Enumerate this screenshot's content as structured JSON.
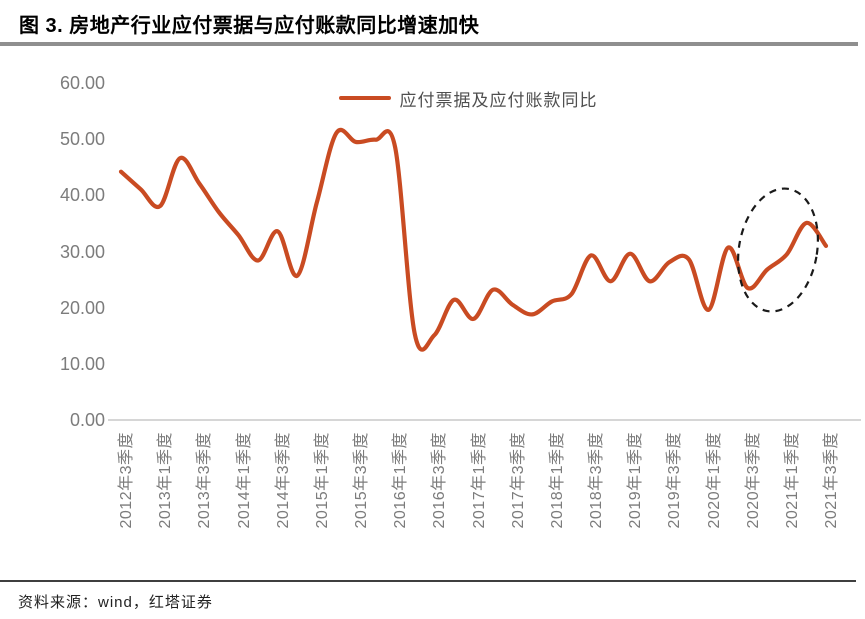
{
  "header": {
    "title": "图 3. 房地产行业应付票据与应付账款同比增速加快"
  },
  "footer": {
    "source": "资料来源：wind，红塔证券"
  },
  "chart_data": {
    "type": "line",
    "title": "图 3. 房地产行业应付票据与应付账款同比增速加快",
    "legend_position": "top-center",
    "grid": false,
    "line_color": "#C94B22",
    "axis_color": "#d6d6d6",
    "tick_color": "#7c7c7c",
    "ylim": [
      0,
      60
    ],
    "y_tick_values": [
      60,
      50,
      40,
      30,
      20,
      10,
      0
    ],
    "y_tick_labels": [
      "60.00",
      "50.00",
      "40.00",
      "30.00",
      "20.00",
      "10.00",
      "0.00"
    ],
    "x_tick_labels": [
      "2012年3季度",
      "2013年1季度",
      "2013年3季度",
      "2014年1季度",
      "2014年3季度",
      "2015年1季度",
      "2015年3季度",
      "2016年1季度",
      "2016年3季度",
      "2017年1季度",
      "2017年3季度",
      "2018年1季度",
      "2018年3季度",
      "2019年1季度",
      "2019年3季度",
      "2020年1季度",
      "2020年3季度",
      "2021年1季度",
      "2021年3季度"
    ],
    "x": [
      "2012Q3",
      "2012Q4",
      "2013Q1",
      "2013Q2",
      "2013Q3",
      "2013Q4",
      "2014Q1",
      "2014Q2",
      "2014Q3",
      "2014Q4",
      "2015Q1",
      "2015Q2",
      "2015Q3",
      "2015Q4",
      "2016Q1",
      "2016Q2",
      "2016Q3",
      "2016Q4",
      "2017Q1",
      "2017Q2",
      "2017Q3",
      "2017Q4",
      "2018Q1",
      "2018Q2",
      "2018Q3",
      "2018Q4",
      "2019Q1",
      "2019Q2",
      "2019Q3",
      "2019Q4",
      "2020Q1",
      "2020Q2",
      "2020Q3",
      "2020Q4",
      "2021Q1",
      "2021Q2",
      "2021Q3"
    ],
    "series": [
      {
        "name": "应付票据及应付账款同比",
        "values": [
          44.2,
          41.1,
          38.1,
          46.6,
          42.1,
          37.0,
          32.9,
          28.4,
          33.6,
          25.7,
          38.7,
          51.1,
          49.5,
          49.9,
          48.5,
          15.3,
          15.1,
          21.4,
          18.0,
          23.2,
          20.5,
          18.8,
          21.1,
          22.4,
          29.3,
          24.7,
          29.6,
          24.7,
          28.1,
          28.6,
          19.6,
          30.7,
          23.5,
          26.8,
          29.5,
          35.1,
          31.0
        ]
      }
    ],
    "annotation": {
      "type": "dashed-ellipse",
      "highlights": "2020Q3至2021Q2增速回升区间",
      "color": "#1a1a1a"
    }
  }
}
